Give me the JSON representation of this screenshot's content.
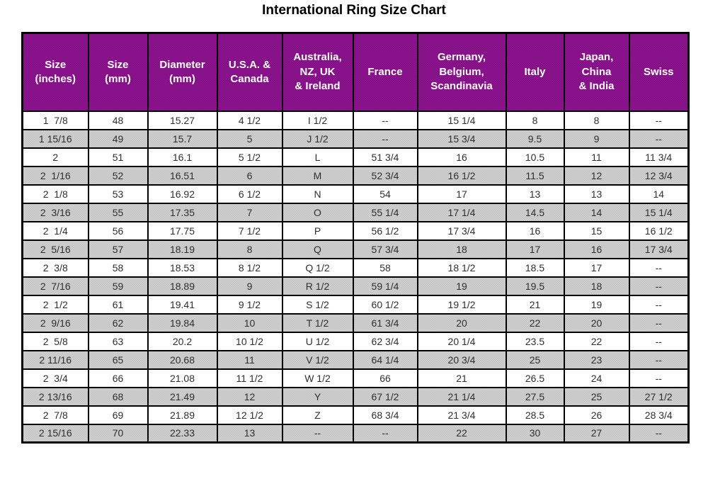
{
  "title": "International Ring Size Chart",
  "colors": {
    "header_bg": "#871189",
    "header_text": "#ffffff",
    "alt_row_bg": "#c9c9c9",
    "border_color": "#000000",
    "text_color": "#2f2f2f",
    "title_color": "#000000",
    "page_bg": "#ffffff"
  },
  "chart_data": {
    "type": "table",
    "title": "International Ring Size Chart",
    "layout_hints": {
      "header_style": "purple background, white bold text, multi-line labels",
      "row_striping": "even rows dithered light gray, odd rows white",
      "grid": "black 2px cell borders, thicker outer border",
      "alignment": "all cells centered"
    },
    "columns": [
      "Size\n(inches)",
      "Size\n(mm)",
      "Diameter\n(mm)",
      "U.S.A. &\nCanada",
      "Australia,\nNZ, UK\n& Ireland",
      "France",
      "Germany,\nBelgium,\nScandinavia",
      "Italy",
      "Japan,\nChina\n& India",
      "Swiss"
    ],
    "rows": [
      [
        "1  7/8",
        "48",
        "15.27",
        "4 1/2",
        "I 1/2",
        "--",
        "15 1/4",
        "8",
        "8",
        "--"
      ],
      [
        "1 15/16",
        "49",
        "15.7",
        "5",
        "J 1/2",
        "--",
        "15 3/4",
        "9.5",
        "9",
        "--"
      ],
      [
        "2",
        "51",
        "16.1",
        "5 1/2",
        "L",
        "51 3/4",
        "16",
        "10.5",
        "11",
        "11 3/4"
      ],
      [
        "2  1/16",
        "52",
        "16.51",
        "6",
        "M",
        "52 3/4",
        "16 1/2",
        "11.5",
        "12",
        "12 3/4"
      ],
      [
        "2  1/8",
        "53",
        "16.92",
        "6 1/2",
        "N",
        "54",
        "17",
        "13",
        "13",
        "14"
      ],
      [
        "2  3/16",
        "55",
        "17.35",
        "7",
        "O",
        "55 1/4",
        "17 1/4",
        "14.5",
        "14",
        "15 1/4"
      ],
      [
        "2  1/4",
        "56",
        "17.75",
        "7 1/2",
        "P",
        "56 1/2",
        "17 3/4",
        "16",
        "15",
        "16 1/2"
      ],
      [
        "2  5/16",
        "57",
        "18.19",
        "8",
        "Q",
        "57 3/4",
        "18",
        "17",
        "16",
        "17 3/4"
      ],
      [
        "2  3/8",
        "58",
        "18.53",
        "8 1/2",
        "Q 1/2",
        "58",
        "18 1/2",
        "18.5",
        "17",
        "--"
      ],
      [
        "2  7/16",
        "59",
        "18.89",
        "9",
        "R 1/2",
        "59 1/4",
        "19",
        "19.5",
        "18",
        "--"
      ],
      [
        "2  1/2",
        "61",
        "19.41",
        "9 1/2",
        "S 1/2",
        "60 1/2",
        "19 1/2",
        "21",
        "19",
        "--"
      ],
      [
        "2  9/16",
        "62",
        "19.84",
        "10",
        "T 1/2",
        "61 3/4",
        "20",
        "22",
        "20",
        "--"
      ],
      [
        "2  5/8",
        "63",
        "20.2",
        "10 1/2",
        "U 1/2",
        "62 3/4",
        "20 1/4",
        "23.5",
        "22",
        "--"
      ],
      [
        "2 11/16",
        "65",
        "20.68",
        "11",
        "V 1/2",
        "64 1/4",
        "20 3/4",
        "25",
        "23",
        "--"
      ],
      [
        "2  3/4",
        "66",
        "21.08",
        "11 1/2",
        "W 1/2",
        "66",
        "21",
        "26.5",
        "24",
        "--"
      ],
      [
        "2 13/16",
        "68",
        "21.49",
        "12",
        "Y",
        "67 1/2",
        "21 1/4",
        "27.5",
        "25",
        "27 1/2"
      ],
      [
        "2  7/8",
        "69",
        "21.89",
        "12 1/2",
        "Z",
        "68 3/4",
        "21 3/4",
        "28.5",
        "26",
        "28 3/4"
      ],
      [
        "2 15/16",
        "70",
        "22.33",
        "13",
        "--",
        "--",
        "22",
        "30",
        "27",
        "--"
      ]
    ]
  }
}
